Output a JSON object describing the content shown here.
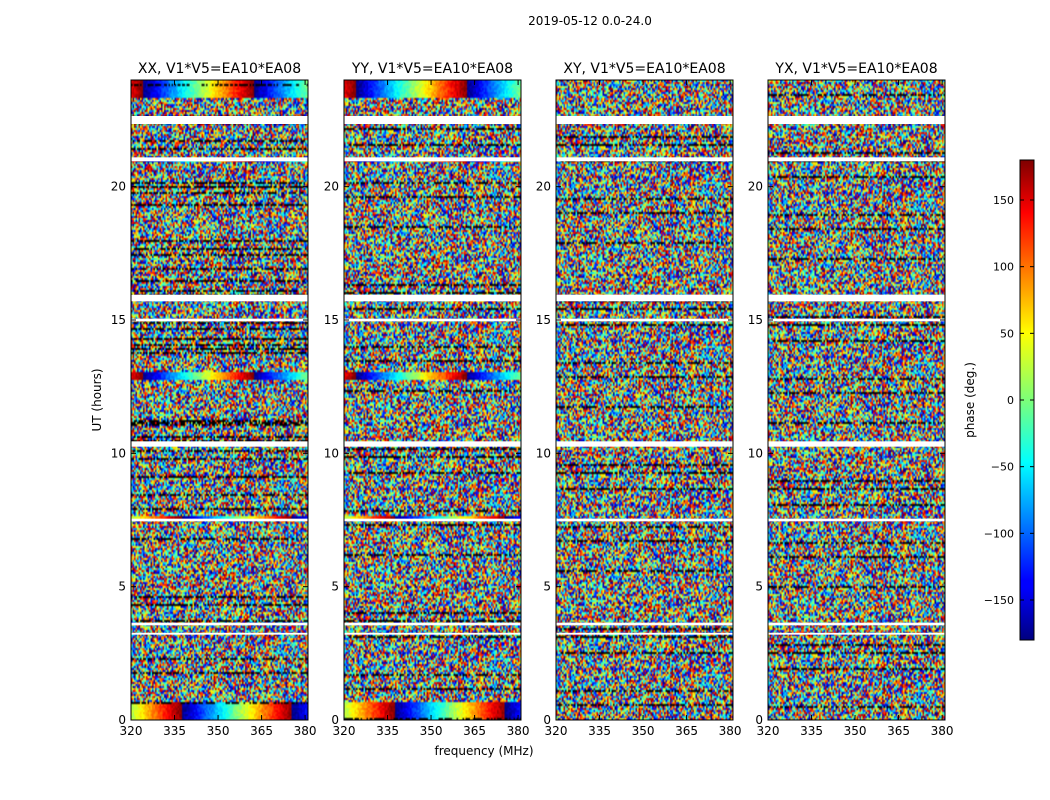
{
  "chart_data": {
    "type": "heatmap",
    "title": "2019-05-12 0.0-24.0",
    "xlabel": "frequency (MHz)",
    "ylabel": "UT (hours)",
    "xlim": [
      320,
      381
    ],
    "ylim": [
      0,
      24
    ],
    "xticks": [
      320,
      335,
      350,
      365,
      380
    ],
    "yticks": [
      0,
      5,
      10,
      15,
      20
    ],
    "panels": [
      {
        "title": "XX, V1*V5=EA10*EA08",
        "polarization": "XX"
      },
      {
        "title": "YY, V1*V5=EA10*EA08",
        "polarization": "YY"
      },
      {
        "title": "XY, V1*V5=EA10*EA08",
        "polarization": "XY"
      },
      {
        "title": "YX, V1*V5=EA10*EA08",
        "polarization": "YX"
      }
    ],
    "colorbar": {
      "label": "phase (deg.)",
      "range": [
        -180,
        180
      ],
      "ticks": [
        -150,
        -100,
        -50,
        0,
        50,
        100,
        150
      ],
      "colormap": "jet"
    },
    "flagged_gaps_hours": [
      [
        22.35,
        22.65
      ],
      [
        20.95,
        21.1
      ],
      [
        15.7,
        15.95
      ],
      [
        14.95,
        15.05
      ],
      [
        10.25,
        10.45
      ],
      [
        7.45,
        7.55
      ],
      [
        3.55,
        3.65
      ],
      [
        3.2,
        3.27
      ]
    ]
  }
}
